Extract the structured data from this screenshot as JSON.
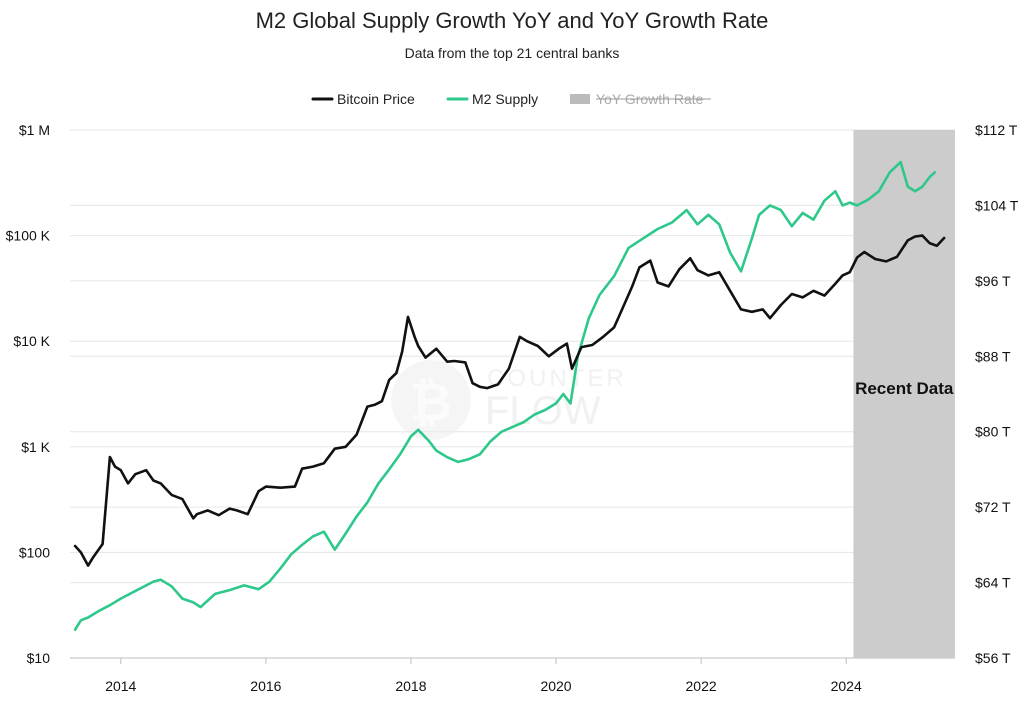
{
  "chart_data": {
    "type": "line",
    "title": "M2 Global Supply Growth YoY and YoY Growth Rate",
    "subtitle": "Data from the top 21 central banks",
    "legend": {
      "placement": "top-center",
      "items": [
        {
          "label": "Bitcoin Price",
          "color": "#111111",
          "hidden": false
        },
        {
          "label": "M2 Supply",
          "color": "#2dc88a",
          "hidden": false
        },
        {
          "label": "YoY Growth Rate",
          "color": "#bbbbbb",
          "hidden": true
        }
      ]
    },
    "x_axis": {
      "ticks": [
        "2014",
        "2016",
        "2018",
        "2020",
        "2022",
        "2024"
      ],
      "range": [
        2013.3,
        2025.5
      ]
    },
    "y_left": {
      "scale": "log",
      "range": [
        10,
        1000000
      ],
      "ticks": [
        "$10",
        "$100",
        "$1 K",
        "$10 K",
        "$100 K",
        "$1 M"
      ]
    },
    "y_right": {
      "scale": "linear",
      "range": [
        56,
        112
      ],
      "ticks": [
        "$56 T",
        "$64 T",
        "$72 T",
        "$80 T",
        "$88 T",
        "$96 T",
        "$104 T",
        "$112 T"
      ]
    },
    "grid": true,
    "shaded_region": {
      "label": "Recent Data",
      "x_start": 2024.1,
      "x_end": 2025.5,
      "color": "#cccccc"
    },
    "watermark": {
      "line1": "COUNTER",
      "line2": "FLOW"
    },
    "series": [
      {
        "name": "Bitcoin Price",
        "axis": "left",
        "color": "#111111",
        "x": [
          2013.37,
          2013.45,
          2013.55,
          2013.62,
          2013.75,
          2013.85,
          2013.92,
          2014.0,
          2014.1,
          2014.2,
          2014.35,
          2014.45,
          2014.55,
          2014.7,
          2014.85,
          2015.0,
          2015.05,
          2015.2,
          2015.35,
          2015.5,
          2015.6,
          2015.75,
          2015.9,
          2016.0,
          2016.2,
          2016.4,
          2016.5,
          2016.65,
          2016.8,
          2016.95,
          2017.1,
          2017.25,
          2017.4,
          2017.5,
          2017.6,
          2017.7,
          2017.8,
          2017.88,
          2017.96,
          2018.05,
          2018.1,
          2018.2,
          2018.35,
          2018.5,
          2018.6,
          2018.75,
          2018.85,
          2018.95,
          2019.05,
          2019.2,
          2019.35,
          2019.5,
          2019.6,
          2019.75,
          2019.9,
          2020.05,
          2020.15,
          2020.22,
          2020.35,
          2020.5,
          2020.65,
          2020.8,
          2020.95,
          2021.05,
          2021.15,
          2021.3,
          2021.4,
          2021.55,
          2021.7,
          2021.85,
          2021.95,
          2022.1,
          2022.25,
          2022.4,
          2022.55,
          2022.7,
          2022.85,
          2022.95,
          2023.1,
          2023.25,
          2023.4,
          2023.55,
          2023.7,
          2023.85,
          2023.95,
          2024.05,
          2024.15,
          2024.25,
          2024.4,
          2024.55,
          2024.7,
          2024.85,
          2024.95,
          2025.05,
          2025.15,
          2025.25,
          2025.35
        ],
        "y": [
          115,
          100,
          75,
          90,
          120,
          800,
          650,
          600,
          450,
          550,
          600,
          480,
          450,
          350,
          320,
          210,
          230,
          250,
          225,
          260,
          250,
          230,
          380,
          420,
          410,
          420,
          620,
          650,
          700,
          960,
          1000,
          1300,
          2400,
          2500,
          2700,
          4300,
          5000,
          8000,
          17000,
          11000,
          9000,
          7000,
          8500,
          6400,
          6500,
          6300,
          4000,
          3700,
          3600,
          3900,
          5500,
          11000,
          10000,
          9000,
          7200,
          8600,
          9500,
          5500,
          8800,
          9200,
          11000,
          13500,
          23000,
          33000,
          50000,
          58000,
          36000,
          33000,
          48000,
          61000,
          47000,
          42000,
          45000,
          30000,
          20000,
          19000,
          20000,
          16500,
          22000,
          28000,
          26000,
          30000,
          27000,
          35000,
          42000,
          45000,
          62000,
          70000,
          60000,
          57000,
          63000,
          90000,
          98000,
          100000,
          85000,
          80000,
          95000
        ]
      },
      {
        "name": "M2 Supply",
        "axis": "right",
        "color": "#2dc88a",
        "x": [
          2013.37,
          2013.45,
          2013.55,
          2013.7,
          2013.85,
          2014.0,
          2014.15,
          2014.3,
          2014.45,
          2014.55,
          2014.7,
          2014.85,
          2015.0,
          2015.1,
          2015.2,
          2015.3,
          2015.5,
          2015.7,
          2015.9,
          2016.05,
          2016.2,
          2016.35,
          2016.5,
          2016.65,
          2016.8,
          2016.95,
          2017.1,
          2017.25,
          2017.4,
          2017.55,
          2017.7,
          2017.85,
          2018.0,
          2018.1,
          2018.25,
          2018.35,
          2018.5,
          2018.65,
          2018.8,
          2018.95,
          2019.1,
          2019.25,
          2019.4,
          2019.55,
          2019.7,
          2019.85,
          2020.0,
          2020.1,
          2020.2,
          2020.3,
          2020.45,
          2020.6,
          2020.8,
          2021.0,
          2021.2,
          2021.4,
          2021.6,
          2021.8,
          2021.95,
          2022.1,
          2022.25,
          2022.4,
          2022.55,
          2022.7,
          2022.8,
          2022.95,
          2023.1,
          2023.25,
          2023.4,
          2023.55,
          2023.7,
          2023.85,
          2023.95,
          2024.05,
          2024.15,
          2024.3,
          2024.45,
          2024.6,
          2024.75,
          2024.85,
          2024.95,
          2025.05,
          2025.15,
          2025.22
        ],
        "y": [
          59.0,
          60.0,
          60.3,
          61.0,
          61.6,
          62.3,
          62.9,
          63.5,
          64.1,
          64.3,
          63.6,
          62.3,
          61.9,
          61.4,
          62.1,
          62.8,
          63.2,
          63.7,
          63.3,
          64.1,
          65.5,
          67.0,
          68.0,
          68.9,
          69.4,
          67.5,
          69.2,
          71.0,
          72.5,
          74.5,
          76.0,
          77.6,
          79.5,
          80.2,
          79.0,
          78.0,
          77.3,
          76.8,
          77.1,
          77.6,
          79.0,
          80.0,
          80.5,
          81.0,
          81.8,
          82.3,
          83.0,
          84.0,
          83.0,
          88.0,
          92.0,
          94.5,
          96.5,
          99.5,
          100.5,
          101.5,
          102.2,
          103.5,
          102.0,
          103.0,
          102.0,
          99.0,
          97.0,
          100.5,
          103.0,
          104.0,
          103.5,
          101.8,
          103.2,
          102.5,
          104.5,
          105.5,
          104.0,
          104.3,
          104.0,
          104.6,
          105.5,
          107.5,
          108.6,
          106.0,
          105.5,
          106.0,
          107.0,
          107.5
        ]
      }
    ]
  }
}
